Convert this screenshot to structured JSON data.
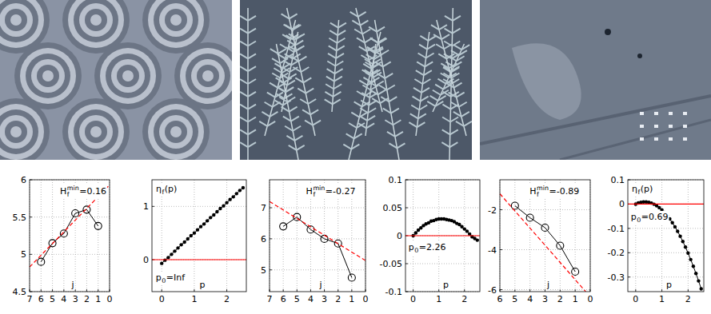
{
  "chart_data": [
    {
      "type": "line",
      "xlim": [
        7,
        0
      ],
      "ylim": [
        4.5,
        6
      ],
      "xticks": [
        7,
        6,
        5,
        4,
        3,
        2,
        1,
        0
      ],
      "yticks": [
        4.5,
        5,
        5.5,
        6
      ],
      "grid": true,
      "x_label": "j",
      "annotation": {
        "base": "H",
        "sub": "f",
        "sup": "min",
        "rest": "=0.16"
      },
      "series": [
        {
          "x": [
            6,
            5,
            4,
            3,
            2,
            1
          ],
          "values": [
            4.9,
            5.15,
            5.28,
            5.55,
            5.6,
            5.38
          ],
          "color": "#000000",
          "marker": "circle",
          "line_style": "solid"
        },
        {
          "x": [
            7,
            0
          ],
          "values": [
            4.83,
            5.93
          ],
          "color": "#ff0000",
          "marker": "none",
          "line_style": "dashed"
        }
      ]
    },
    {
      "type": "line",
      "xlim": [
        -0.3,
        2.6
      ],
      "ylim": [
        -0.6,
        1.5
      ],
      "xticks": [
        0,
        1,
        2
      ],
      "yticks": [
        0,
        1
      ],
      "grid": true,
      "x_label": "p",
      "y_label": {
        "base": "η",
        "sub": "f",
        "rest": "(p)"
      },
      "annotation": {
        "base": "p",
        "sub": "0",
        "rest": "=Inf"
      },
      "series": [
        {
          "x": [
            0,
            0.1,
            0.2,
            0.3,
            0.4,
            0.5,
            0.6,
            0.7,
            0.8,
            0.9,
            1,
            1.1,
            1.2,
            1.3,
            1.4,
            1.5,
            1.6,
            1.7,
            1.8,
            1.9,
            2,
            2.1,
            2.2,
            2.3,
            2.4,
            2.5
          ],
          "values": [
            -0.07,
            -0.01,
            0.04,
            0.1,
            0.16,
            0.22,
            0.28,
            0.33,
            0.39,
            0.45,
            0.5,
            0.56,
            0.62,
            0.67,
            0.73,
            0.79,
            0.84,
            0.9,
            0.96,
            1.01,
            1.07,
            1.13,
            1.18,
            1.24,
            1.3,
            1.35
          ],
          "color": "#000000",
          "marker": "dot",
          "line_style": "solid"
        },
        {
          "x": [
            -0.3,
            2.6
          ],
          "values": [
            0,
            0
          ],
          "color": "#ff0000",
          "marker": "none",
          "line_style": "solid"
        }
      ]
    },
    {
      "type": "line",
      "xlim": [
        7,
        0
      ],
      "ylim": [
        4.3,
        7.9
      ],
      "xticks": [
        7,
        6,
        5,
        4,
        3,
        2,
        1,
        0
      ],
      "yticks": [
        5,
        6,
        7
      ],
      "grid": true,
      "x_label": "j",
      "annotation": {
        "base": "H",
        "sub": "f",
        "sup": "min",
        "rest": "=-0.27"
      },
      "series": [
        {
          "x": [
            6,
            5,
            4,
            3,
            2,
            1
          ],
          "values": [
            6.4,
            6.7,
            6.3,
            6.0,
            5.85,
            4.75
          ],
          "color": "#000000",
          "marker": "circle",
          "line_style": "solid"
        },
        {
          "x": [
            7,
            0
          ],
          "values": [
            7.2,
            5.3
          ],
          "color": "#ff0000",
          "marker": "none",
          "line_style": "dashed"
        }
      ]
    },
    {
      "type": "line",
      "xlim": [
        -0.3,
        2.6
      ],
      "ylim": [
        -0.1,
        0.1
      ],
      "xticks": [
        0,
        1,
        2
      ],
      "yticks": [
        -0.1,
        -0.05,
        0,
        0.05,
        0.1
      ],
      "grid": true,
      "x_label": "p",
      "annotation": {
        "base": "p",
        "sub": "0",
        "rest": "=2.26"
      },
      "series": [
        {
          "x": [
            0,
            0.1,
            0.2,
            0.3,
            0.4,
            0.5,
            0.6,
            0.7,
            0.8,
            0.9,
            1,
            1.1,
            1.2,
            1.3,
            1.4,
            1.5,
            1.6,
            1.7,
            1.8,
            1.9,
            2,
            2.1,
            2.2,
            2.3,
            2.4,
            2.5
          ],
          "values": [
            0,
            0.005,
            0.01,
            0.014,
            0.018,
            0.021,
            0.023,
            0.026,
            0.027,
            0.029,
            0.03,
            0.03,
            0.03,
            0.029,
            0.028,
            0.027,
            0.025,
            0.022,
            0.02,
            0.016,
            0.012,
            0.008,
            0.003,
            -0.002,
            -0.005,
            -0.008
          ],
          "color": "#000000",
          "marker": "dot",
          "line_style": "solid"
        },
        {
          "x": [
            -0.3,
            2.6
          ],
          "values": [
            0,
            0
          ],
          "color": "#ff0000",
          "marker": "none",
          "line_style": "solid"
        }
      ]
    },
    {
      "type": "line",
      "xlim": [
        6,
        0
      ],
      "ylim": [
        -6.1,
        -0.5
      ],
      "xticks": [
        6,
        5,
        4,
        3,
        2,
        1,
        0
      ],
      "yticks": [
        -6,
        -4,
        -2
      ],
      "grid": true,
      "x_label": "j",
      "annotation": {
        "base": "H",
        "sub": "f",
        "sup": "min",
        "rest": "=-0.89"
      },
      "series": [
        {
          "x": [
            5,
            4,
            3,
            2,
            1
          ],
          "values": [
            -1.8,
            -2.4,
            -2.9,
            -3.8,
            -5.1
          ],
          "color": "#000000",
          "marker": "circle",
          "line_style": "solid"
        },
        {
          "x": [
            6,
            0.3
          ],
          "values": [
            -1.2,
            -6.1
          ],
          "color": "#ff0000",
          "marker": "none",
          "line_style": "dashed"
        }
      ]
    },
    {
      "type": "line",
      "xlim": [
        -0.3,
        2.6
      ],
      "ylim": [
        -0.36,
        0.1
      ],
      "xticks": [
        0,
        1,
        2
      ],
      "yticks": [
        -0.3,
        -0.2,
        -0.1,
        0,
        0.1
      ],
      "grid": true,
      "x_label": "p",
      "y_label": {
        "base": "η",
        "sub": "f",
        "rest": "(p)"
      },
      "annotation": {
        "base": "p",
        "sub": "0",
        "rest": "=0.69"
      },
      "series": [
        {
          "x": [
            0,
            0.1,
            0.2,
            0.3,
            0.4,
            0.5,
            0.6,
            0.7,
            0.8,
            0.9,
            1,
            1.1,
            1.2,
            1.3,
            1.4,
            1.5,
            1.6,
            1.7,
            1.8,
            1.9,
            2,
            2.1,
            2.2,
            2.3,
            2.4,
            2.5
          ],
          "values": [
            0,
            0.0045,
            0.0075,
            0.009,
            0.0089,
            0.0073,
            0.0042,
            -0.0005,
            -0.0068,
            -0.0146,
            -0.0239,
            -0.0347,
            -0.0471,
            -0.0611,
            -0.0765,
            -0.0936,
            -0.1121,
            -0.1322,
            -0.1538,
            -0.177,
            -0.2017,
            -0.228,
            -0.2558,
            -0.2851,
            -0.316,
            -0.3484
          ],
          "color": "#000000",
          "marker": "dot",
          "line_style": "solid"
        },
        {
          "x": [
            -0.3,
            2.6
          ],
          "values": [
            0,
            0
          ],
          "color": "#ff0000",
          "marker": "none",
          "line_style": "solid"
        }
      ]
    }
  ]
}
